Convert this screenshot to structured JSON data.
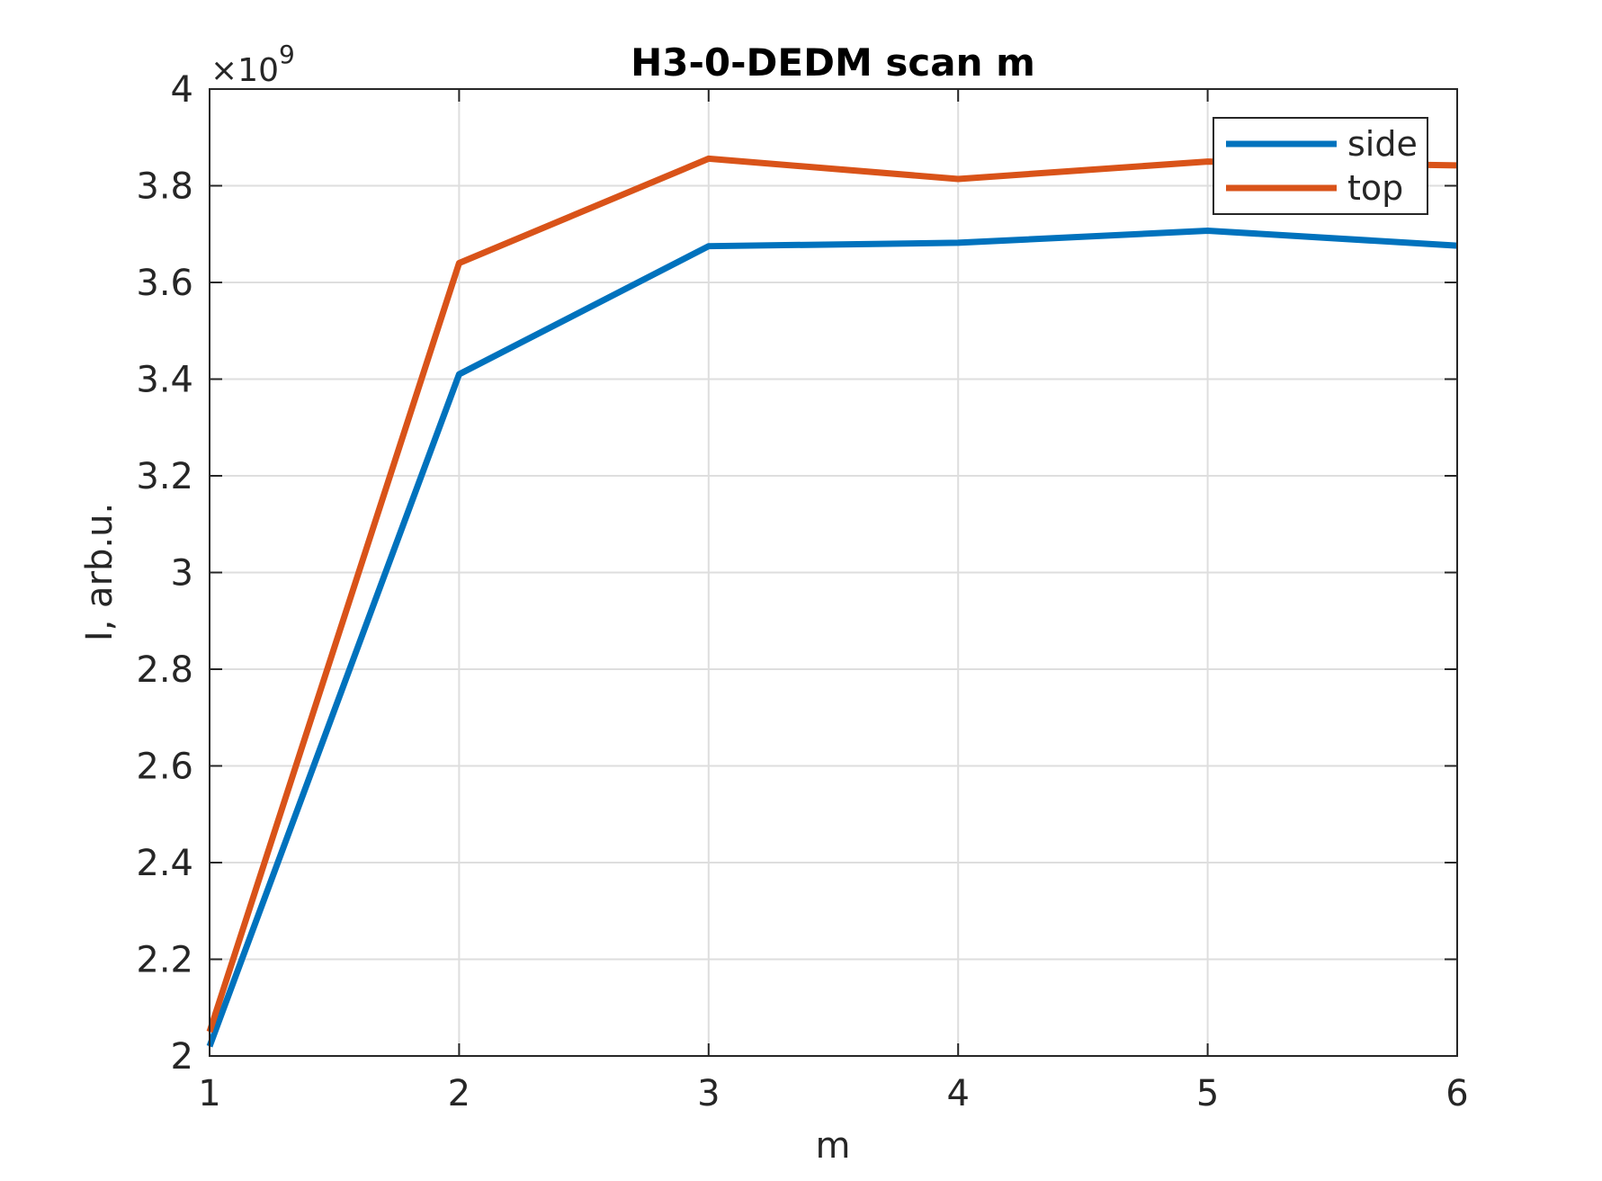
{
  "chart_data": {
    "type": "line",
    "title": "H3-0-DEDM scan m",
    "xlabel": "m",
    "ylabel": "I, arb.u.",
    "exponent_base": "×10",
    "exponent_power": "9",
    "x": [
      1,
      2,
      3,
      4,
      5,
      6
    ],
    "xlim": [
      1,
      6
    ],
    "ylim": [
      2,
      4
    ],
    "xticks": [
      1,
      2,
      3,
      4,
      5,
      6
    ],
    "xtick_labels": [
      "1",
      "2",
      "3",
      "4",
      "5",
      "6"
    ],
    "yticks": [
      2,
      2.2,
      2.4,
      2.6,
      2.8,
      3,
      3.2,
      3.4,
      3.6,
      3.8,
      4
    ],
    "ytick_labels": [
      "2",
      "2.2",
      "2.4",
      "2.6",
      "2.8",
      "3",
      "3.2",
      "3.4",
      "3.6",
      "3.8",
      "4"
    ],
    "grid": true,
    "legend_position": "top-right",
    "series": [
      {
        "name": "side",
        "color": "#0072bd",
        "values": [
          2.02,
          3.41,
          3.675,
          3.682,
          3.707,
          3.676
        ]
      },
      {
        "name": "top",
        "color": "#d95319",
        "values": [
          2.05,
          3.64,
          3.856,
          3.814,
          3.85,
          3.842
        ]
      }
    ]
  }
}
